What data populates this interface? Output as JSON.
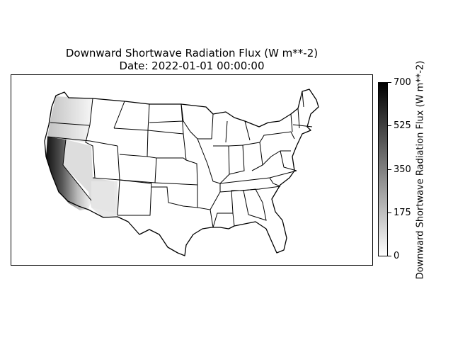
{
  "title": {
    "line1": "Downward Shortwave Radiation Flux (W m**-2)",
    "line2": "Date: 2022-01-01 00:00:00"
  },
  "colorbar": {
    "label": "Downward Shortwave Radiation Flux (W m**-2)",
    "ticks": [
      "700",
      "525",
      "350",
      "175",
      "0"
    ],
    "min": 0,
    "max": 700,
    "colormap": "white-to-black"
  },
  "map": {
    "region": "contiguous-united-states",
    "boundaries": "state-outlines",
    "high_values_region": "west-coast"
  }
}
